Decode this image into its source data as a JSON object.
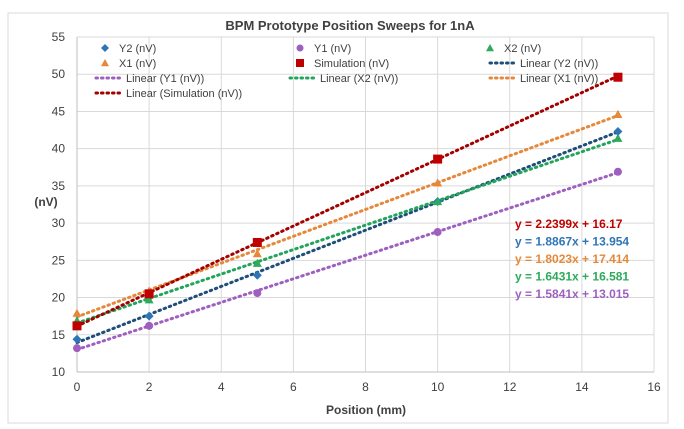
{
  "chart_data": {
    "type": "scatter",
    "title": "BPM Prototype Position Sweeps for 1nA",
    "xlabel": "Position (mm)",
    "ylabel": "(nV)",
    "xlim": [
      0,
      16
    ],
    "ylim": [
      10,
      55
    ],
    "xticks": [
      "0",
      "2",
      "4",
      "6",
      "8",
      "10",
      "12",
      "14",
      "16"
    ],
    "yticks": [
      "10",
      "15",
      "20",
      "25",
      "30",
      "35",
      "40",
      "45",
      "50",
      "55"
    ],
    "grid": true,
    "legend_position": "top",
    "x": [
      0,
      2,
      5,
      10,
      15
    ],
    "series": [
      {
        "name": "Y2 (nV)",
        "marker": "diamond",
        "color": "#2e75b6",
        "values": [
          14.4,
          17.5,
          23.0,
          32.9,
          42.3
        ],
        "trendline": {
          "name": "Linear (Y2 (nV))",
          "slope": 1.8867,
          "intercept": 13.954,
          "equation": "y = 1.8867x + 13.954",
          "color": "#1f4e79"
        }
      },
      {
        "name": "Y1 (nV)",
        "marker": "circle",
        "color": "#9e5fc0",
        "values": [
          13.2,
          16.2,
          20.6,
          28.8,
          36.9
        ],
        "trendline": {
          "name": "Linear (Y1 (nV))",
          "slope": 1.5841,
          "intercept": 13.015,
          "equation": "y = 1.5841x + 13.015",
          "color": "#9e5fc0"
        }
      },
      {
        "name": "X2 (nV)",
        "marker": "triangle",
        "color": "#2eaa5c",
        "values": [
          16.9,
          19.7,
          24.6,
          32.9,
          41.4
        ],
        "trendline": {
          "name": "Linear (X2 (nV))",
          "slope": 1.6431,
          "intercept": 16.581,
          "equation": "y = 1.6431x + 16.581",
          "color": "#22a55a"
        }
      },
      {
        "name": "X1 (nV)",
        "marker": "triangle",
        "color": "#e5883a",
        "values": [
          17.9,
          20.9,
          25.9,
          35.4,
          44.6
        ],
        "trendline": {
          "name": "Linear (X1 (nV))",
          "slope": 1.8023,
          "intercept": 17.414,
          "equation": "y = 1.8023x + 17.414",
          "color": "#e5883a"
        }
      },
      {
        "name": "Simulation (nV)",
        "marker": "square",
        "color": "#c00000",
        "values": [
          16.2,
          20.5,
          27.4,
          38.6,
          49.6
        ],
        "trendline": {
          "name": "Linear (Simulation (nV))",
          "slope": 2.2399,
          "intercept": 16.17,
          "equation": "y = 2.2399x + 16.17",
          "color": "#a50000"
        }
      }
    ]
  }
}
